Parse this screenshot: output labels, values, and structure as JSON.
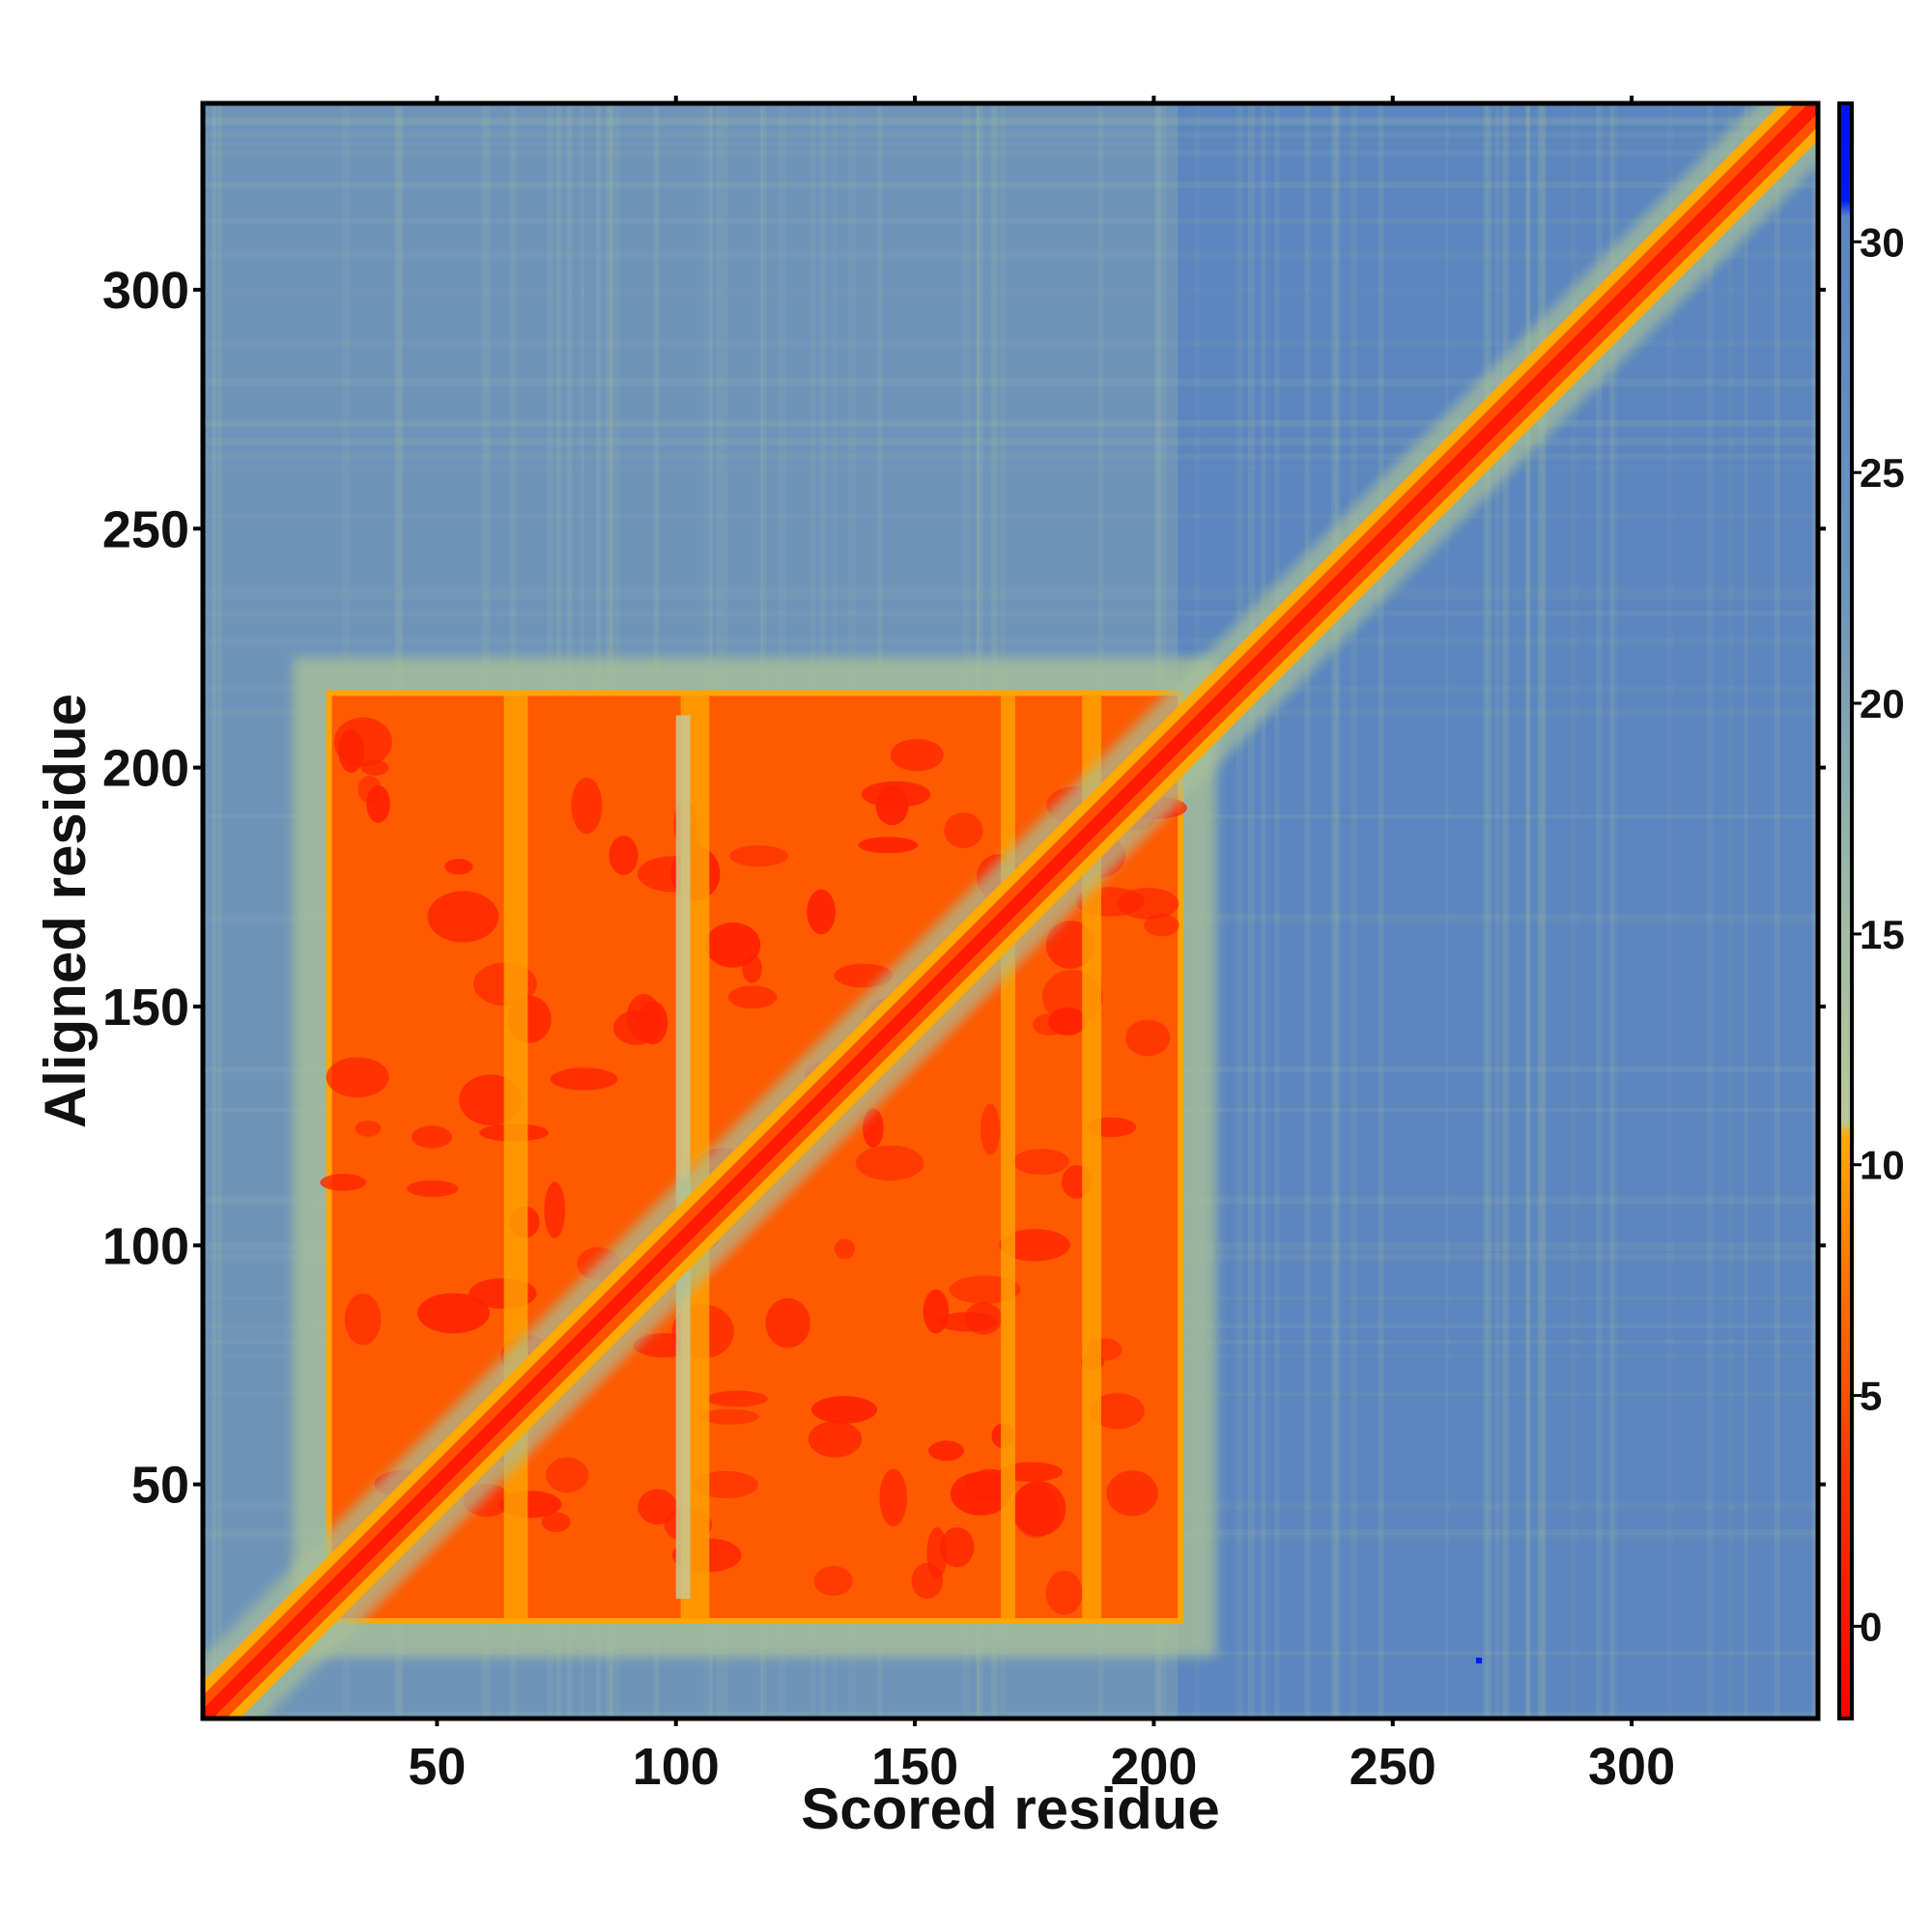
{
  "chart_data": {
    "type": "heatmap",
    "title": "",
    "xlabel": "Scored residue",
    "ylabel": "Aligned residue",
    "xlim": [
      1,
      339
    ],
    "ylim": [
      1,
      339
    ],
    "x_ticks": [
      "50",
      "100",
      "150",
      "200",
      "250",
      "300"
    ],
    "y_ticks": [
      "50",
      "100",
      "150",
      "200",
      "250",
      "300"
    ],
    "colorbar": {
      "range": [
        -2,
        33
      ],
      "ticks": [
        "0",
        "5",
        "10",
        "15",
        "20",
        "25",
        "30"
      ],
      "colors": [
        "#ff0000",
        "#ff5500",
        "#ffaa00",
        "#a4c4a0",
        "#5b86bf",
        "#0018ff"
      ]
    },
    "regions": [
      {
        "description": "low-error domain block",
        "x_range": [
          28,
          205
        ],
        "y_range": [
          22,
          215
        ],
        "value_range": [
          1,
          7
        ]
      },
      {
        "description": "diagonal",
        "x_range": [
          1,
          339
        ],
        "y_range": [
          1,
          339
        ],
        "value_range": [
          0,
          3
        ]
      },
      {
        "description": "background",
        "value_range": [
          22,
          28
        ]
      }
    ]
  }
}
